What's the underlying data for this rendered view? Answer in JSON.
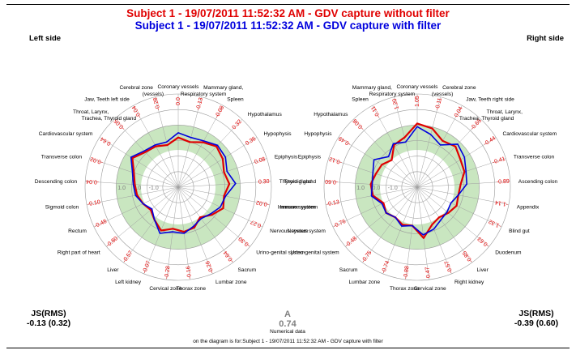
{
  "titles": {
    "without_filter": "Subject 1 - 19/07/2011 11:52:32 AM - GDV capture without filter",
    "with_filter": "Subject 1 - 19/07/2011 11:52:32 AM - GDV capture with filter"
  },
  "colors": {
    "without_filter": "#e00000",
    "with_filter": "#0000dd",
    "band": "#c9e6c0",
    "scale_text": "#e00000"
  },
  "left_label": "Left side",
  "right_label": "Right side",
  "ring_labels": [
    "-1.0",
    "0.0",
    "1.0"
  ],
  "chart_data": [
    {
      "type": "radar",
      "side": "Left side",
      "range": [
        -3,
        3
      ],
      "band": [
        -0.6,
        1.0
      ],
      "categories": [
        "Coronary vessels",
        "Mammary gland, Respiratory system",
        "Spleen",
        "Hypothalamus",
        "Hypophysis",
        "Epiphysis",
        "Thyroid gland",
        "Immune system",
        "Nervous system",
        "Urino-genital system",
        "Sacrum",
        "Lumbar zone",
        "Thorax zone",
        "Cervical zone",
        "Left kidney",
        "Liver",
        "Right part of heart",
        "Rectum",
        "Sigmoid colon",
        "Descending colon",
        "Transverse colon",
        "Cardiovascular system",
        "Throat, Larynx, Trachea, Thyroid gland",
        "Jaw, Teeth left side",
        "Cerebral zone (vessels)"
      ],
      "value_labels": [
        "0.0",
        "-0.13",
        "-0.08",
        "0.32",
        "0.36",
        "0.08",
        "0.30",
        "-0.02",
        "0.27",
        "-0.30",
        "-0.64",
        "-0.26",
        "-0.16",
        "-0.28",
        "-0.07",
        "-0.57",
        "-0.80",
        "-0.48",
        "-0.10",
        "-0.04",
        "-0.02",
        "0.64",
        "-0.05",
        "-0.04",
        "-0.28"
      ],
      "series": [
        {
          "name": "GDV capture without filter",
          "values": [
            0.2,
            0.0,
            0.3,
            0.6,
            0.4,
            0.1,
            0.3,
            0.0,
            0.2,
            -0.2,
            -0.6,
            -0.2,
            -0.1,
            -0.3,
            0.0,
            -0.4,
            -0.7,
            -0.5,
            -0.3,
            -0.2,
            0.0,
            0.5,
            0.1,
            0.0,
            -0.2
          ]
        },
        {
          "name": "GDV capture with filter",
          "values": [
            0.5,
            0.3,
            0.4,
            0.7,
            0.6,
            0.3,
            0.7,
            0.1,
            0.0,
            -0.3,
            -0.5,
            -0.3,
            0.0,
            -0.1,
            0.2,
            -0.4,
            -0.8,
            -0.5,
            -0.2,
            -0.1,
            0.1,
            0.6,
            0.2,
            0.1,
            0.0
          ]
        }
      ]
    },
    {
      "type": "radar",
      "side": "Right side",
      "range": [
        -3,
        3
      ],
      "band": [
        -0.6,
        1.0
      ],
      "categories": [
        "Coronary vessels",
        "Cerebral zone (vessels)",
        "Jaw, Teeth right side",
        "Throat, Larynx, Trachea, Thyroid gland",
        "Cardiovascular system",
        "Transverse colon",
        "Ascending colon",
        "Appendix",
        "Blind gut",
        "Duodenum",
        "Liver",
        "Right kidney",
        "Cervical zone",
        "Thorax zone",
        "Lumbar zone",
        "Sacrum",
        "Urino-genital system",
        "Nervous system",
        "Immune system",
        "Thyroid gland",
        "Epiphysis",
        "Hypophysis",
        "Hypothalamus",
        "Spleen",
        "Mammary gland, Respiratory system"
      ],
      "value_labels": [
        "1.05",
        "-0.11",
        "0.04",
        "-0.65",
        "-0.44",
        "-0.41",
        "-0.89",
        "-1.14",
        "-1.32",
        "-0.63",
        "-0.85",
        "-0.57",
        "0.47",
        "-0.88",
        "-0.74",
        "-0.75",
        "-0.48",
        "-0.76",
        "-0.13",
        "-0.60",
        "-0.12",
        "-0.49",
        "-0.08",
        "-0.11",
        "1.20"
      ],
      "series": [
        {
          "name": "GDV capture without filter",
          "values": [
            1.1,
            0.9,
            0.4,
            0.6,
            0.3,
            0.2,
            -0.2,
            -0.3,
            -0.2,
            -0.4,
            -0.6,
            -0.4,
            0.3,
            -0.5,
            -0.4,
            -0.6,
            -0.4,
            -0.6,
            -0.1,
            0.0,
            -0.2,
            -0.3,
            -0.6,
            0.1,
            0.3
          ]
        },
        {
          "name": "GDV capture with filter",
          "values": [
            0.9,
            0.5,
            0.1,
            0.8,
            0.6,
            0.3,
            0.2,
            -0.3,
            -0.6,
            -0.5,
            -0.4,
            -0.1,
            0.1,
            -0.5,
            -0.3,
            -0.6,
            -0.4,
            -0.5,
            0.0,
            -0.1,
            0.0,
            0.3,
            -0.3,
            0.2,
            0.0
          ]
        }
      ]
    }
  ],
  "summary": {
    "left_title": "JS(RMS)",
    "left_value": "-0.13 (0.32)",
    "right_title": "JS(RMS)",
    "right_value": "-0.39 (0.60)",
    "center_letter": "A",
    "center_value": "0.74",
    "center_caption": "Numerical data"
  },
  "footer": "on the diagram is for:Subject 1 - 19/07/2011 11:52:32 AM - GDV capture with filter"
}
